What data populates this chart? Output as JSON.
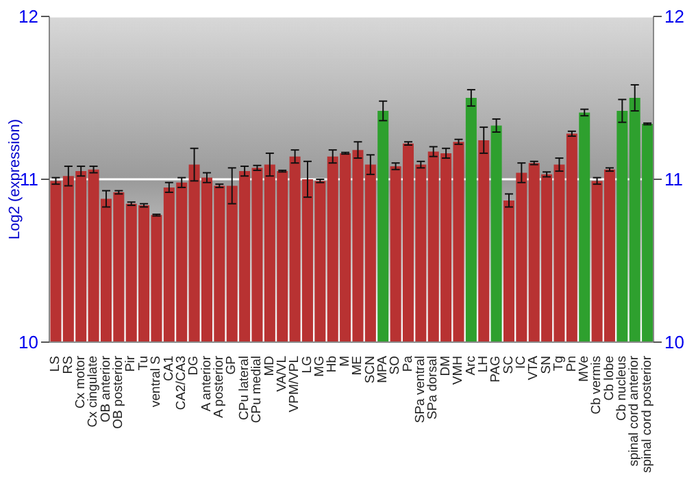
{
  "chart_data": {
    "type": "bar",
    "ylabel": "Log2 (expression)",
    "categories": [
      "LS",
      "RS",
      "Cx motor",
      "Cx cingulate",
      "OB anterior",
      "OB posterior",
      "Pir",
      "Tu",
      "ventral S",
      "CA1",
      "CA2/CA3",
      "DG",
      "A anterior",
      "A posterior",
      "GP",
      "CPu lateral",
      "CPu medial",
      "MD",
      "VA/VL",
      "VPM/VPL",
      "LG",
      "MG",
      "Hb",
      "M",
      "ME",
      "SCN",
      "MPA",
      "SO",
      "Pa",
      "SPa ventral",
      "SPa dorsal",
      "DM",
      "VMH",
      "Arc",
      "LH",
      "PAG",
      "SC",
      "IC",
      "VTA",
      "SN",
      "Tg",
      "Pn",
      "MVe",
      "Cb vermis",
      "Cb lobe",
      "Cb nucleus",
      "spinal cord anterior",
      "spinal cord posterior"
    ],
    "values": [
      10.99,
      11.02,
      11.05,
      11.06,
      10.88,
      10.92,
      10.85,
      10.84,
      10.78,
      10.95,
      10.98,
      11.09,
      11.01,
      10.96,
      10.96,
      11.05,
      11.07,
      11.09,
      11.05,
      11.14,
      11.0,
      10.99,
      11.14,
      11.16,
      11.18,
      11.09,
      11.42,
      11.08,
      11.22,
      11.09,
      11.17,
      11.16,
      11.23,
      11.5,
      11.24,
      11.33,
      10.87,
      11.04,
      11.1,
      11.03,
      11.09,
      11.28,
      11.41,
      10.99,
      11.06,
      11.42,
      11.5,
      11.34
    ],
    "errors": [
      0.02,
      0.06,
      0.03,
      0.02,
      0.05,
      0.01,
      0.01,
      0.01,
      0.005,
      0.03,
      0.03,
      0.1,
      0.03,
      0.01,
      0.11,
      0.03,
      0.015,
      0.07,
      0.005,
      0.04,
      0.11,
      0.01,
      0.04,
      0.005,
      0.05,
      0.06,
      0.06,
      0.02,
      0.01,
      0.02,
      0.03,
      0.03,
      0.015,
      0.05,
      0.08,
      0.04,
      0.04,
      0.06,
      0.01,
      0.015,
      0.04,
      0.015,
      0.02,
      0.02,
      0.01,
      0.07,
      0.08,
      0.005
    ],
    "colors": [
      "#b83232",
      "#b83232",
      "#b83232",
      "#b83232",
      "#b83232",
      "#b83232",
      "#b83232",
      "#b83232",
      "#b83232",
      "#b83232",
      "#b83232",
      "#b83232",
      "#b83232",
      "#b83232",
      "#b83232",
      "#b83232",
      "#b83232",
      "#b83232",
      "#b83232",
      "#b83232",
      "#b83232",
      "#b83232",
      "#b83232",
      "#b83232",
      "#b83232",
      "#b83232",
      "#2ea02e",
      "#b83232",
      "#b83232",
      "#b83232",
      "#b83232",
      "#b83232",
      "#b83232",
      "#2ea02e",
      "#b83232",
      "#2ea02e",
      "#b83232",
      "#b83232",
      "#b83232",
      "#b83232",
      "#b83232",
      "#b83232",
      "#2ea02e",
      "#b83232",
      "#b83232",
      "#2ea02e",
      "#2ea02e",
      "#2ea02e"
    ],
    "ylim": [
      10,
      12
    ],
    "yticks": [
      10,
      11,
      12
    ],
    "y2lim": [
      10,
      12
    ],
    "y2ticks": [
      10,
      11,
      12
    ],
    "grid": "y"
  }
}
